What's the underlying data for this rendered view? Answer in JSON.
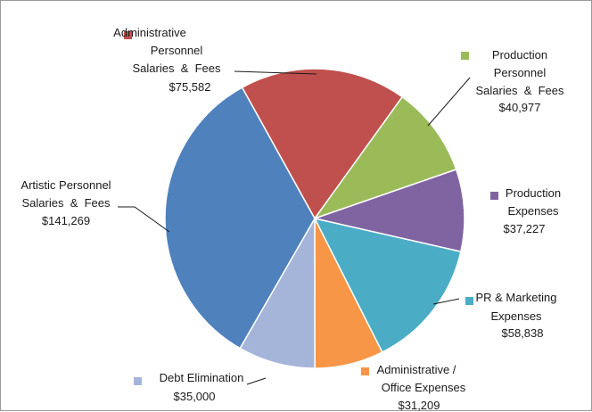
{
  "chart_data": {
    "type": "pie",
    "slices": [
      {
        "label_lines": [
          "Administrative",
          "Personnel",
          "Salaries  &  Fees"
        ],
        "value_label": "$75,582",
        "value": 75582,
        "color": "#c0504d"
      },
      {
        "label_lines": [
          "Production",
          "Personnel",
          "Salaries  &  Fees"
        ],
        "value_label": "$40,977",
        "value": 40977,
        "color": "#9bbb59"
      },
      {
        "label_lines": [
          "Production",
          "Expenses"
        ],
        "value_label": "$37,227",
        "value": 37227,
        "color": "#8064a2"
      },
      {
        "label_lines": [
          "PR & Marketing",
          "Expenses"
        ],
        "value_label": "$58,838",
        "value": 58838,
        "color": "#4bacc6"
      },
      {
        "label_lines": [
          "Administrative /",
          "Office Expenses"
        ],
        "value_label": "$31,209",
        "value": 31209,
        "color": "#f79646"
      },
      {
        "label_lines": [
          "Debt Elimination"
        ],
        "value_label": "$35,000",
        "value": 35000,
        "color": "#a5b5d9"
      },
      {
        "label_lines": [
          "Artistic Personnel",
          "Salaries  &  Fees"
        ],
        "value_label": "$141,269",
        "value": 141269,
        "color": "#4f81bd"
      }
    ]
  }
}
